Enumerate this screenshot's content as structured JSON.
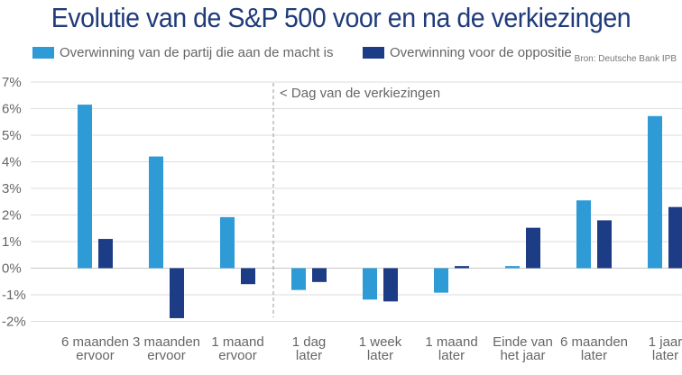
{
  "chart_data": {
    "type": "bar",
    "title": "Evolutie van de S&P 500 voor en na de verkiezingen",
    "source": "Bron: Deutsche Bank IPB",
    "annotation": "< Dag van de verkiezingen",
    "categories": [
      [
        "6 maanden",
        "ervoor"
      ],
      [
        "3 maanden",
        "ervoor"
      ],
      [
        "1 maand",
        "ervoor"
      ],
      [
        "1 dag",
        "later"
      ],
      [
        "1 week",
        "later"
      ],
      [
        "1 maand",
        "later"
      ],
      [
        "Einde van",
        "het jaar"
      ],
      [
        "6 maanden",
        "later"
      ],
      [
        "1 jaar",
        "later"
      ]
    ],
    "series": [
      {
        "name": "Overwinning van de partij die aan de macht is",
        "color": "#2e9bd6",
        "values": [
          6.15,
          4.2,
          1.92,
          -0.82,
          -1.18,
          -0.92,
          0.08,
          2.55,
          5.72
        ]
      },
      {
        "name": "Overwinning voor de oppositie",
        "color": "#1d3c86",
        "values": [
          1.1,
          -1.88,
          -0.6,
          -0.52,
          -1.25,
          0.08,
          1.52,
          1.8,
          2.3
        ]
      }
    ],
    "yticks": [
      "7%",
      "6%",
      "5%",
      "4%",
      "3%",
      "2%",
      "1%",
      "0%",
      "-1%",
      "-2%"
    ],
    "ylim": [
      -2,
      7
    ],
    "grid": true,
    "legend": "top-left"
  }
}
